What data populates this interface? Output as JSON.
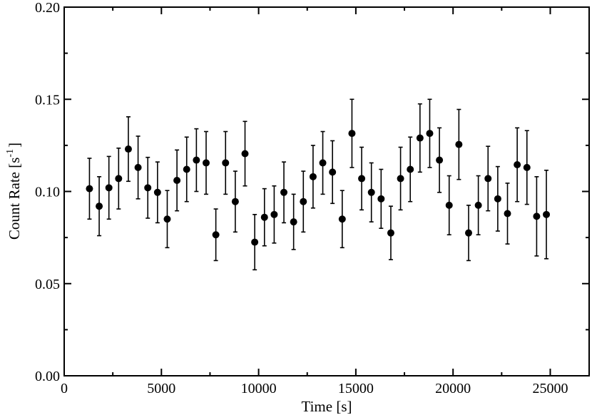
{
  "chart_data": {
    "type": "scatter",
    "title": "",
    "xlabel": "Time [s]",
    "ylabel_parts": {
      "base": "Count Rate [s",
      "exponent": "-1",
      "close": "]"
    },
    "xlim": [
      0,
      27000
    ],
    "ylim": [
      0,
      0.2
    ],
    "x_ticks": [
      0,
      5000,
      10000,
      15000,
      20000,
      25000
    ],
    "x_tick_labels": [
      "0",
      "5000",
      "10000",
      "15000",
      "20000",
      "25000"
    ],
    "y_ticks": [
      0,
      0.05,
      0.1,
      0.15,
      0.2
    ],
    "y_tick_labels": [
      "0.00",
      "0.05",
      "0.10",
      "0.15",
      "0.20"
    ],
    "grid": false,
    "marker_color": "#000000",
    "series": [
      {
        "x": [
          1300,
          1800,
          2300,
          2800,
          3300,
          3800,
          4300,
          4800,
          5300,
          5800,
          6300,
          6800,
          7300,
          7800,
          8300,
          8800,
          9300,
          9800,
          10300,
          10800,
          11300,
          11800,
          12300,
          12800,
          13300,
          13800,
          14300,
          14800,
          15300,
          15800,
          16300,
          16800,
          17300,
          17800,
          18300,
          18800,
          19300,
          19800,
          20300,
          20800,
          21300,
          21800,
          22300,
          22800,
          23300,
          23800,
          24300,
          24800
        ],
        "y": [
          0.1015,
          0.092,
          0.102,
          0.107,
          0.123,
          0.113,
          0.102,
          0.0995,
          0.085,
          0.106,
          0.112,
          0.117,
          0.1155,
          0.0765,
          0.1155,
          0.0945,
          0.1205,
          0.0725,
          0.086,
          0.0875,
          0.0995,
          0.0835,
          0.0945,
          0.108,
          0.1155,
          0.1105,
          0.085,
          0.1315,
          0.107,
          0.0995,
          0.096,
          0.0775,
          0.107,
          0.112,
          0.129,
          0.1315,
          0.117,
          0.0925,
          0.1255,
          0.0775,
          0.0925,
          0.107,
          0.096,
          0.088,
          0.1145,
          0.113,
          0.0865,
          0.0875
        ],
        "err": [
          0.0165,
          0.016,
          0.017,
          0.0165,
          0.0175,
          0.017,
          0.0165,
          0.0165,
          0.0155,
          0.0165,
          0.0175,
          0.017,
          0.017,
          0.014,
          0.017,
          0.0165,
          0.0175,
          0.015,
          0.0155,
          0.0155,
          0.0165,
          0.015,
          0.0165,
          0.017,
          0.017,
          0.017,
          0.0155,
          0.0185,
          0.017,
          0.016,
          0.016,
          0.0145,
          0.017,
          0.0175,
          0.0185,
          0.0185,
          0.0175,
          0.016,
          0.019,
          0.015,
          0.016,
          0.0175,
          0.0175,
          0.0165,
          0.02,
          0.02,
          0.0215,
          0.024
        ]
      }
    ]
  }
}
